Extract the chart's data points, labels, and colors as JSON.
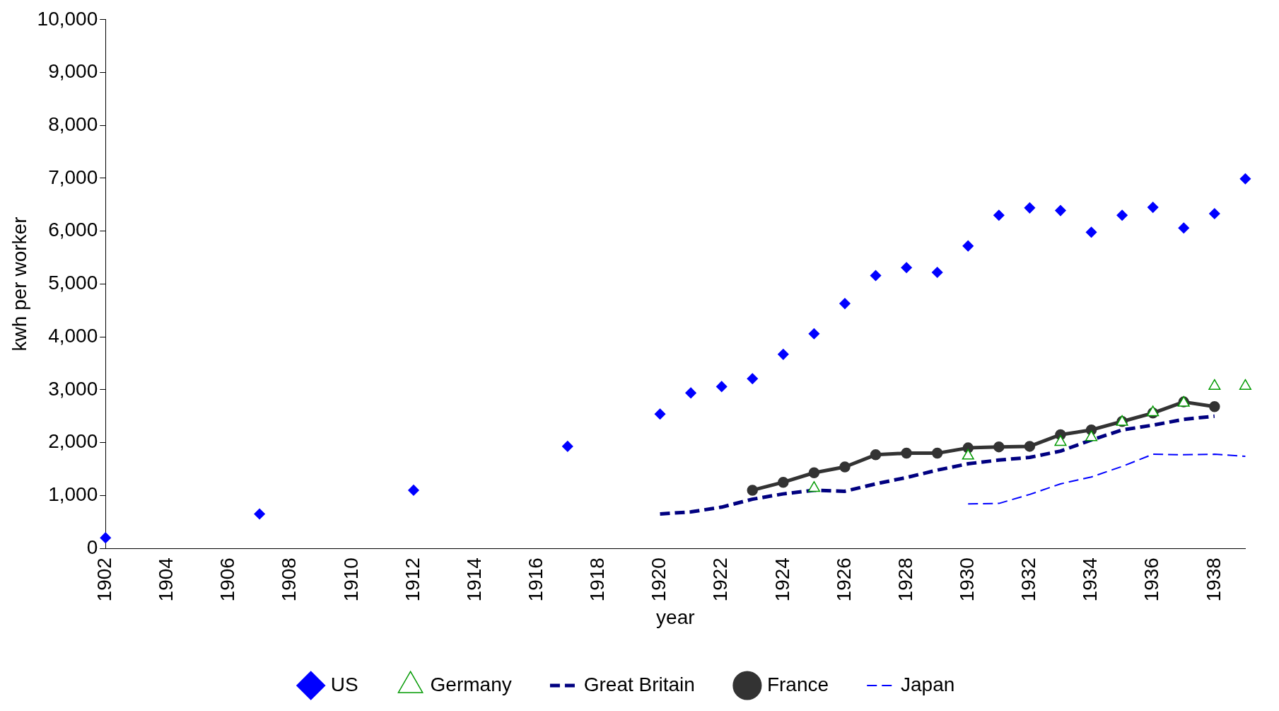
{
  "chart_data": {
    "type": "line",
    "xlabel": "year",
    "ylabel": "kwh per worker",
    "categories": [
      "1902",
      null,
      "1904",
      null,
      "1906",
      null,
      "1908",
      null,
      "1910",
      null,
      "1912",
      null,
      "1914",
      null,
      "1916",
      null,
      "1918",
      null,
      "1920",
      null,
      "1922",
      null,
      "1924",
      null,
      "1926",
      null,
      "1928",
      null,
      "1930",
      null,
      "1932",
      null,
      "1934",
      null,
      "1936",
      null,
      "1938",
      null
    ],
    "ylim": [
      0,
      10000
    ],
    "yticks": [
      0,
      {
        "value": 1000,
        "label": "1,000"
      },
      {
        "value": 2000,
        "label": "2,000"
      },
      {
        "value": 3000,
        "label": "3,000"
      },
      {
        "value": 4000,
        "label": "4,000"
      },
      {
        "value": 5000,
        "label": "5,000"
      },
      {
        "value": 6000,
        "label": "6,000"
      },
      {
        "value": 7000,
        "label": "7,000"
      },
      {
        "value": 8000,
        "label": "8,000"
      },
      {
        "value": 9000,
        "label": "9,000"
      },
      {
        "value": 10000,
        "label": "10,000"
      }
    ],
    "grid": false,
    "legend": "bottom",
    "series": [
      {
        "name": "US",
        "type": "scatter",
        "marker": "diamond",
        "color": "#0000ff",
        "values": [
          200,
          null,
          null,
          null,
          null,
          650,
          null,
          null,
          null,
          null,
          1100,
          null,
          null,
          null,
          null,
          1930,
          null,
          null,
          2540,
          2940,
          3060,
          3210,
          3670,
          4060,
          4630,
          5160,
          5310,
          5220,
          5720,
          6300,
          6440,
          6390,
          5980,
          6300,
          6450,
          6060,
          6330,
          6990
        ]
      },
      {
        "name": "Great Britain",
        "marker": "none",
        "line_style": "dashed",
        "color": "#000080",
        "values": [
          null,
          null,
          null,
          null,
          null,
          null,
          null,
          null,
          null,
          null,
          null,
          null,
          null,
          null,
          null,
          null,
          null,
          null,
          650,
          690,
          780,
          930,
          1030,
          1100,
          1080,
          1220,
          1340,
          1480,
          1600,
          1670,
          1720,
          1840,
          2050,
          2240,
          2330,
          2440,
          2500,
          null
        ]
      },
      {
        "name": "Germany",
        "type": "scatter",
        "marker": "triangle",
        "color": "#009900",
        "values": [
          null,
          null,
          null,
          null,
          null,
          null,
          null,
          null,
          null,
          null,
          null,
          null,
          null,
          null,
          null,
          null,
          null,
          null,
          null,
          null,
          null,
          null,
          null,
          1140,
          null,
          null,
          null,
          null,
          1750,
          null,
          null,
          2010,
          2100,
          2390,
          2570,
          2750,
          3070,
          3070
        ]
      },
      {
        "name": "France",
        "marker": "circle",
        "line_style": "solid",
        "color": "#333333",
        "values": [
          null,
          null,
          null,
          null,
          null,
          null,
          null,
          null,
          null,
          null,
          null,
          null,
          null,
          null,
          null,
          null,
          null,
          null,
          null,
          null,
          null,
          1100,
          1250,
          1430,
          1540,
          1770,
          1800,
          1800,
          1900,
          1920,
          1930,
          2150,
          2240,
          2400,
          2560,
          2770,
          2680,
          null
        ]
      },
      {
        "name": "Japan",
        "marker": "none",
        "line_style": "dashed",
        "color": "#0000ff",
        "values": [
          null,
          null,
          null,
          null,
          null,
          null,
          null,
          null,
          null,
          null,
          null,
          null,
          null,
          null,
          null,
          null,
          null,
          null,
          null,
          null,
          null,
          null,
          null,
          null,
          null,
          null,
          null,
          null,
          840,
          850,
          1020,
          1220,
          1350,
          1550,
          1780,
          1770,
          1780,
          1740
        ]
      }
    ]
  }
}
